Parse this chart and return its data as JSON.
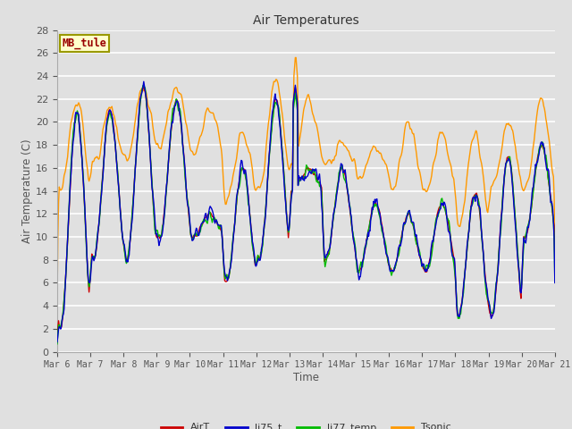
{
  "title": "Air Temperatures",
  "xlabel": "Time",
  "ylabel": "Air Temperature (C)",
  "ylim": [
    0,
    28
  ],
  "yticks": [
    0,
    2,
    4,
    6,
    8,
    10,
    12,
    14,
    16,
    18,
    20,
    22,
    24,
    26,
    28
  ],
  "xtick_labels": [
    "Mar 6",
    "Mar 7",
    "Mar 8",
    "Mar 9",
    "Mar 10",
    "Mar 11",
    "Mar 12",
    "Mar 13",
    "Mar 14",
    "Mar 15",
    "Mar 16",
    "Mar 17",
    "Mar 18",
    "Mar 19",
    "Mar 20",
    "Mar 21"
  ],
  "colors": {
    "AirT": "#cc0000",
    "li75_t": "#0000cc",
    "li77_temp": "#00bb00",
    "Tsonic": "#ff9900"
  },
  "background_color": "#e0e0e0",
  "plot_bg": "#e0e0e0",
  "grid_color": "#ffffff",
  "annotation_text": "MB_tule",
  "annotation_color": "#990000",
  "annotation_bg": "#ffffcc",
  "annotation_border": "#999900",
  "legend_entries": [
    "AirT",
    "li75_t",
    "li77_temp",
    "Tsonic"
  ],
  "day_mins_air": [
    2,
    8,
    8,
    10,
    10,
    6,
    8,
    14,
    8,
    7,
    7,
    7,
    3,
    3,
    10,
    10
  ],
  "day_maxs_air": [
    21,
    21,
    23,
    22,
    12,
    16,
    22,
    16,
    16,
    13,
    12,
    13,
    14,
    17,
    18,
    10
  ],
  "tsonic_mins": [
    14,
    16,
    17,
    18,
    17,
    13,
    14,
    16,
    16,
    15,
    14,
    14,
    11,
    14,
    14,
    14
  ],
  "tsonic_maxs": [
    22,
    21,
    23,
    23,
    21,
    19,
    24,
    22,
    18,
    18,
    20,
    19,
    19,
    20,
    22,
    19
  ],
  "n_days": 15,
  "pts_per_day": 48
}
